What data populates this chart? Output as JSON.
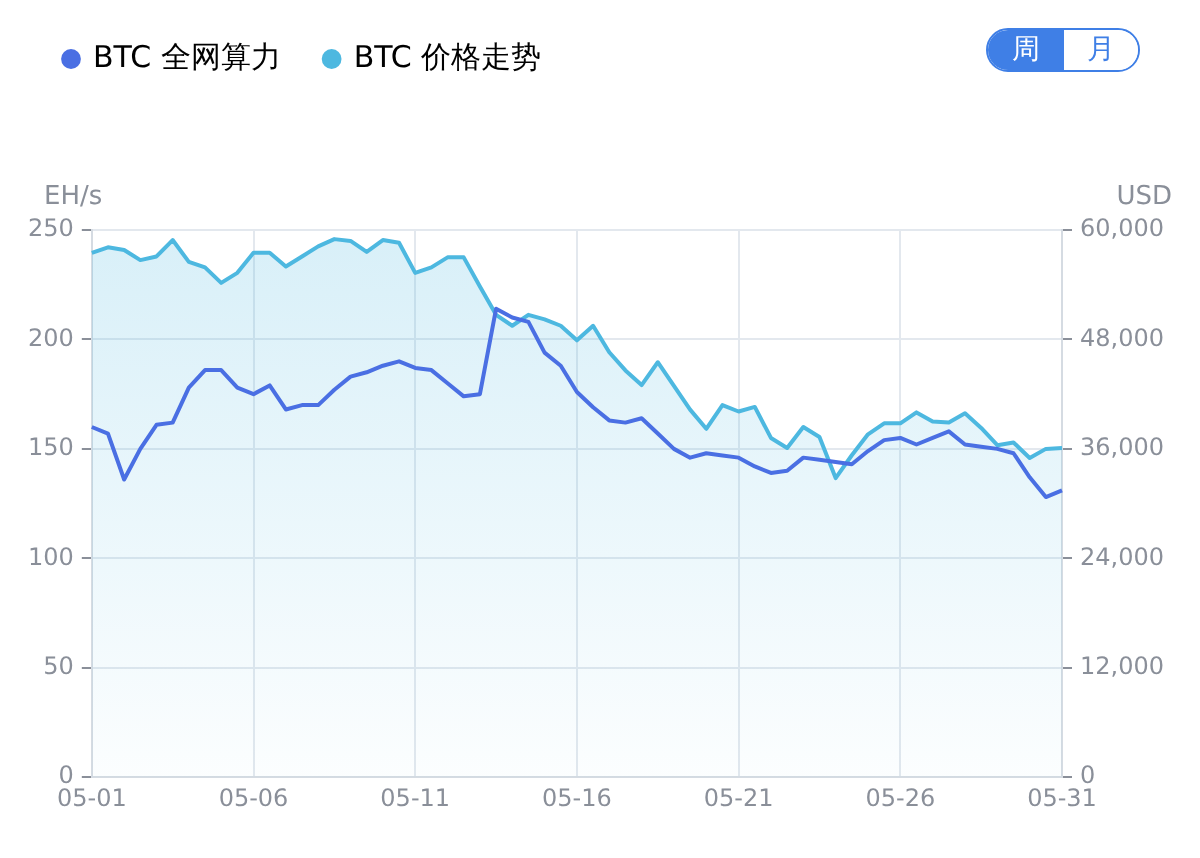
{
  "chart_data": {
    "type": "line",
    "ylabel": "EH/s",
    "y2label": "USD",
    "annotations": [
      "周",
      "月"
    ],
    "categories": [
      "05-01",
      null,
      null,
      null,
      null,
      null,
      null,
      null,
      null,
      null,
      "05-06",
      null,
      null,
      null,
      null,
      null,
      null,
      null,
      null,
      null,
      "05-11",
      null,
      null,
      null,
      null,
      null,
      null,
      null,
      null,
      null,
      "05-16",
      null,
      null,
      null,
      null,
      null,
      null,
      null,
      null,
      null,
      "05-21",
      null,
      null,
      null,
      null,
      null,
      null,
      null,
      null,
      null,
      "05-26",
      null,
      null,
      null,
      null,
      null,
      null,
      null,
      null,
      null,
      "05-31"
    ],
    "ylim": [
      0,
      250
    ],
    "yticks": [
      0,
      50,
      100,
      150,
      200,
      250
    ],
    "y2lim": [
      0,
      60000
    ],
    "y2ticks": [
      0,
      {
        "value": 12000,
        "label": "12,000"
      },
      {
        "value": 24000,
        "label": "24,000"
      },
      {
        "value": 36000,
        "label": "36,000"
      },
      {
        "value": 48000,
        "label": "48,000"
      },
      {
        "value": 60000,
        "label": "60,000"
      }
    ],
    "grid": true,
    "legend": "top left",
    "marker": "none",
    "line_style": "solid",
    "series": [
      {
        "name": "BTC 全网算力",
        "type": "line",
        "color": "#4a6fe3",
        "values": [
          160,
          157,
          136,
          150,
          161,
          162,
          178,
          186,
          186,
          178,
          175,
          179,
          168,
          170,
          170,
          177,
          183,
          185,
          188,
          190,
          187,
          186,
          180,
          174,
          175,
          214,
          210,
          208,
          194,
          188,
          176,
          169,
          163,
          162,
          164,
          157,
          150,
          146,
          148,
          147,
          146,
          142,
          139,
          140,
          146,
          145,
          144,
          143,
          149,
          154,
          155,
          152,
          155,
          158,
          152,
          151,
          150,
          148,
          137,
          128,
          131
        ]
      },
      {
        "name": "BTC 价格走势",
        "type": "area",
        "axis": "y2",
        "color": "#4db8e0",
        "values": [
          57500,
          58100,
          57800,
          56700,
          57100,
          58900,
          56500,
          55900,
          54200,
          55300,
          57500,
          57500,
          56000,
          57100,
          58200,
          59000,
          58800,
          57600,
          58900,
          58600,
          55300,
          55900,
          57000,
          57000,
          53800,
          50700,
          49500,
          50700,
          50200,
          49500,
          47900,
          49500,
          46600,
          44600,
          43000,
          45500,
          42900,
          40300,
          38200,
          40800,
          40100,
          40600,
          37200,
          36100,
          38400,
          37300,
          32800,
          35300,
          37600,
          38800,
          38800,
          40000,
          39000,
          38900,
          39900,
          38300,
          36400,
          36700,
          35000,
          36000,
          36100
        ]
      }
    ]
  }
}
